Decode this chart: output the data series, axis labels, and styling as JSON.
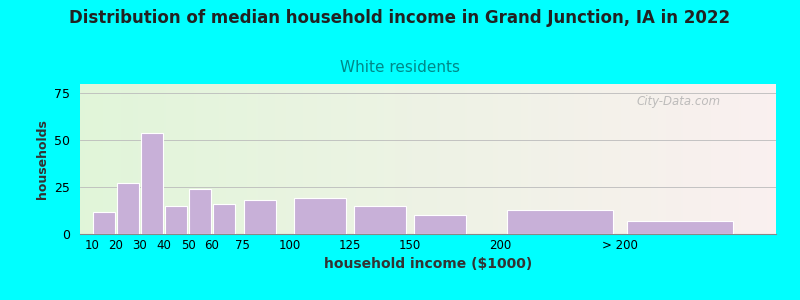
{
  "title": "Distribution of median household income in Grand Junction, IA in 2022",
  "subtitle": "White residents",
  "xlabel": "household income ($1000)",
  "ylabel": "households",
  "title_fontsize": 12,
  "subtitle_fontsize": 11,
  "subtitle_color": "#008888",
  "xlabel_fontsize": 10,
  "ylabel_fontsize": 9,
  "background_outer": "#00ffff",
  "bar_color": "#c8b0d8",
  "bar_edge_color": "#ffffff",
  "categories": [
    "10",
    "20",
    "30",
    "40",
    "50",
    "60",
    "75",
    "100",
    "125",
    "150",
    "200",
    "> 200"
  ],
  "left_edges": [
    5,
    15,
    25,
    35,
    45,
    55,
    67.5,
    87.5,
    112.5,
    137.5,
    175,
    225
  ],
  "widths": [
    10,
    10,
    10,
    10,
    10,
    10,
    15,
    25,
    25,
    25,
    50,
    50
  ],
  "values": [
    12,
    27,
    54,
    15,
    24,
    16,
    18,
    19,
    15,
    10,
    13,
    7
  ],
  "ylim": [
    0,
    80
  ],
  "yticks": [
    0,
    25,
    50,
    75
  ],
  "watermark": "City-Data.com"
}
